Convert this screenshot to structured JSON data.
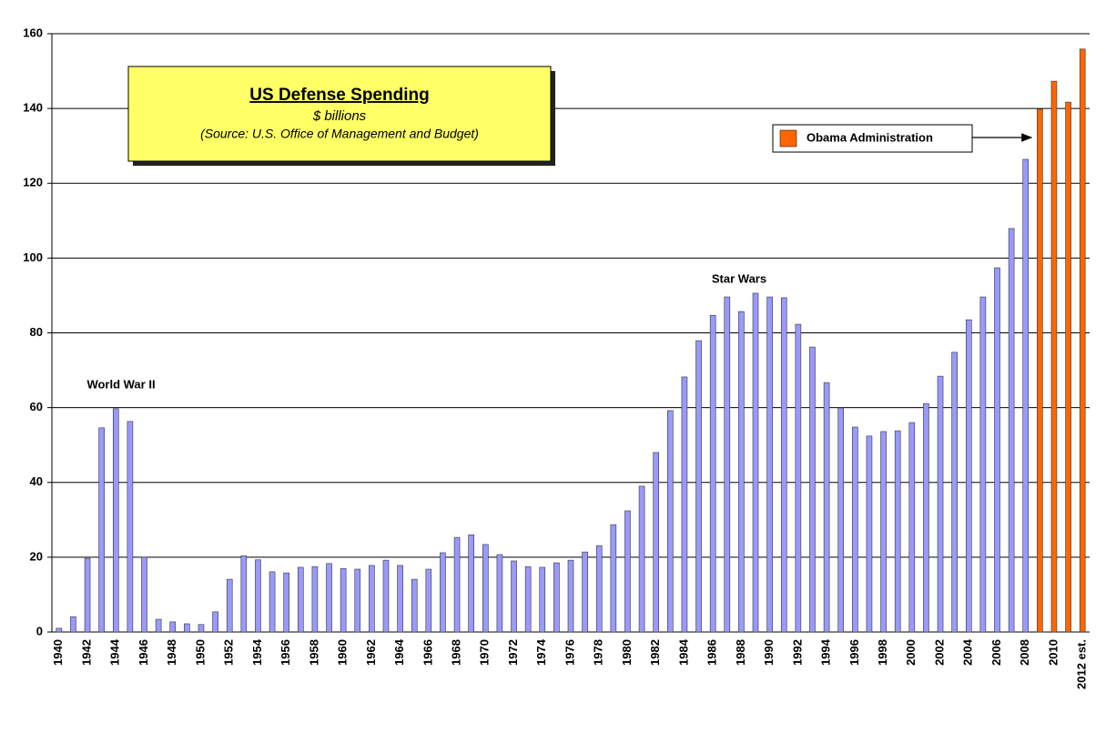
{
  "chart_data": {
    "type": "bar",
    "title": "US Defense Spending",
    "subtitle": "$ billions",
    "source": "(Source: U.S. Office of Management and Budget)",
    "categories": [
      "1940",
      null,
      "1942",
      null,
      "1944",
      null,
      "1946",
      null,
      "1948",
      null,
      "1950",
      null,
      "1952",
      null,
      "1954",
      null,
      "1956",
      null,
      "1958",
      null,
      "1960",
      null,
      "1962",
      null,
      "1964",
      null,
      "1966",
      null,
      "1968",
      null,
      "1970",
      null,
      "1972",
      null,
      "1974",
      null,
      "1976",
      null,
      "1978",
      null,
      "1980",
      null,
      "1982",
      null,
      "1984",
      null,
      "1986",
      null,
      "1988",
      null,
      "1990",
      null,
      "1992",
      null,
      "1994",
      null,
      "1996",
      null,
      "1998",
      null,
      "2000",
      null,
      "2002",
      null,
      "2004",
      null,
      "2006",
      null,
      "2008",
      null,
      "2010",
      null,
      "2012 est."
    ],
    "values": [
      1,
      4.1,
      19.7,
      54.6,
      59.7,
      56.3,
      20,
      3.4,
      2.7,
      2.2,
      2,
      5.4,
      14.1,
      20.4,
      19.3,
      16.1,
      15.8,
      17.3,
      17.5,
      18.3,
      17,
      16.8,
      17.8,
      19.2,
      17.8,
      14.1,
      16.8,
      21.2,
      25.3,
      26,
      23.4,
      20.7,
      19,
      17.5,
      17.3,
      18.5,
      19.2,
      21.4,
      23.1,
      28.7,
      32.4,
      39,
      48,
      59.2,
      68.2,
      77.9,
      84.7,
      89.6,
      85.7,
      90.6,
      89.6,
      89.4,
      82.3,
      76.2,
      66.7,
      59.9,
      54.8,
      52.4,
      53.6,
      53.8,
      56,
      61.1,
      68.4,
      74.8,
      83.5,
      89.6,
      97.4,
      107.9,
      126.4,
      139.8,
      147.3,
      141.7,
      155.9
    ],
    "colors": [
      "#9999ff",
      "#9999ff",
      "#9999ff",
      "#9999ff",
      "#9999ff",
      "#9999ff",
      "#9999ff",
      "#9999ff",
      "#9999ff",
      "#9999ff",
      "#9999ff",
      "#9999ff",
      "#9999ff",
      "#9999ff",
      "#9999ff",
      "#9999ff",
      "#9999ff",
      "#9999ff",
      "#9999ff",
      "#9999ff",
      "#9999ff",
      "#9999ff",
      "#9999ff",
      "#9999ff",
      "#9999ff",
      "#9999ff",
      "#9999ff",
      "#9999ff",
      "#9999ff",
      "#9999ff",
      "#9999ff",
      "#9999ff",
      "#9999ff",
      "#9999ff",
      "#9999ff",
      "#9999ff",
      "#9999ff",
      "#9999ff",
      "#9999ff",
      "#9999ff",
      "#9999ff",
      "#9999ff",
      "#9999ff",
      "#9999ff",
      "#9999ff",
      "#9999ff",
      "#9999ff",
      "#9999ff",
      "#9999ff",
      "#9999ff",
      "#9999ff",
      "#9999ff",
      "#9999ff",
      "#9999ff",
      "#9999ff",
      "#9999ff",
      "#9999ff",
      "#9999ff",
      "#9999ff",
      "#9999ff",
      "#9999ff",
      "#9999ff",
      "#9999ff",
      "#9999ff",
      "#9999ff",
      "#9999ff",
      "#9999ff",
      "#9999ff",
      "#9999ff",
      "#ff6600",
      "#ff6600",
      "#ff6600",
      "#ff6600"
    ],
    "legend": {
      "label": "Obama Administration",
      "color": "#ff6600"
    },
    "annotations": [
      "World War II",
      "Star Wars"
    ],
    "ylim": [
      0,
      160
    ],
    "yticks": [
      0,
      20,
      40,
      60,
      80,
      100,
      120,
      140,
      160
    ],
    "grid": true
  }
}
